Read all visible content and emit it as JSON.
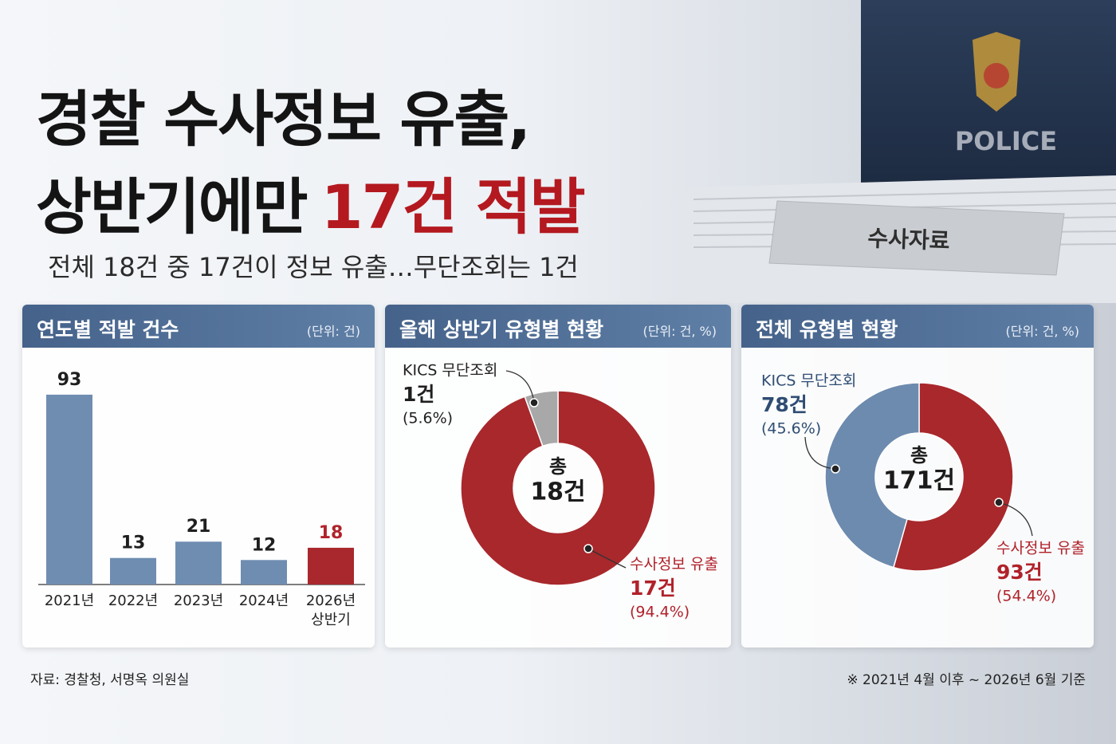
{
  "background": {
    "folder_tab": "수사자료",
    "badge": "POLICE"
  },
  "header": {
    "title_line1": "경찰 수사정보 유출,",
    "title_line2": "상반기에만",
    "title_highlight": "17건 적발",
    "subtitle": "전체 18건 중 17건이 정보 유출…무단조회는 1건"
  },
  "chart_data": [
    {
      "type": "bar",
      "title": "연도별 적발 건수",
      "unit": "(단위: 건)",
      "categories": [
        "2021년",
        "2022년",
        "2023년",
        "2024년",
        "2026년 상반기"
      ],
      "values": [
        93,
        13,
        21,
        12,
        18
      ],
      "colors": [
        "#6f8db1",
        "#6f8db1",
        "#6f8db1",
        "#6f8db1",
        "#a9282d"
      ],
      "value_label_colors": [
        "#1f1f1f",
        "#1f1f1f",
        "#1f1f1f",
        "#1f1f1f",
        "#b0222a"
      ],
      "ylim": [
        0,
        100
      ]
    },
    {
      "type": "donut",
      "title": "올해 상반기 유형별 현황",
      "unit": "(단위: 건, %)",
      "center_label": "총",
      "total": 18,
      "total_label": "18건",
      "categories": [
        "수사정보 유출",
        "KICS 무단조회"
      ],
      "values": [
        17,
        1
      ],
      "value_labels": [
        "17건",
        "1건"
      ],
      "percents": [
        94.4,
        5.6
      ],
      "percent_labels": [
        "(94.4%)",
        "(5.6%)"
      ],
      "colors": [
        "#a8282c",
        "#a8a8a8"
      ],
      "label_colors": [
        "#b0222a",
        "#1f1f1f"
      ]
    },
    {
      "type": "donut",
      "title": "전체 유형별 현황",
      "unit": "(단위: 건, %)",
      "center_label": "총",
      "total": 171,
      "total_label": "171건",
      "categories": [
        "수사정보 유출",
        "KICS 무단조회"
      ],
      "values": [
        93,
        78
      ],
      "value_labels": [
        "93건",
        "78건"
      ],
      "percents": [
        54.4,
        45.6
      ],
      "percent_labels": [
        "(54.4%)",
        "(45.6%)"
      ],
      "colors": [
        "#a8282c",
        "#6d8bae"
      ],
      "label_colors": [
        "#b0222a",
        "#2f4d73"
      ]
    }
  ],
  "footer": {
    "source": "자료: 경찰청, 서명옥 의원실",
    "note": "※ 2021년 4월 이후 ~ 2026년 6월 기준"
  }
}
